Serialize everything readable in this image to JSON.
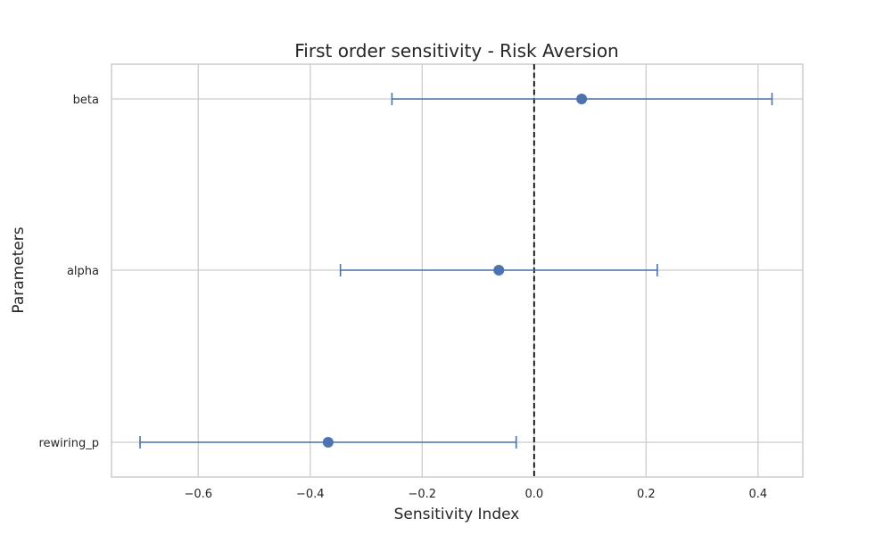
{
  "chart_data": {
    "type": "scatter",
    "title": "First order sensitivity - Risk Aversion",
    "xlabel": "Sensitivity Index",
    "ylabel": "Parameters",
    "xlim": [
      -0.755,
      0.48
    ],
    "x_ticks": [
      -0.6,
      -0.4,
      -0.2,
      0.0,
      0.2,
      0.4
    ],
    "x_tick_labels": [
      "−0.6",
      "−0.4",
      "−0.2",
      "0.0",
      "0.2",
      "0.4"
    ],
    "categories": [
      "beta",
      "alpha",
      "rewiring_p"
    ],
    "series": [
      {
        "values": [
          0.085,
          -0.063,
          -0.368
        ],
        "error_low": [
          -0.254,
          -0.346,
          -0.704
        ],
        "error_high": [
          0.425,
          0.22,
          -0.032
        ]
      }
    ],
    "reference_line": {
      "x": 0.0,
      "style": "dashed",
      "color": "#000000"
    },
    "grid": true,
    "colors": {
      "series": "#4c72b0",
      "grid": "#cccccc",
      "frame": "#cccccc"
    }
  }
}
